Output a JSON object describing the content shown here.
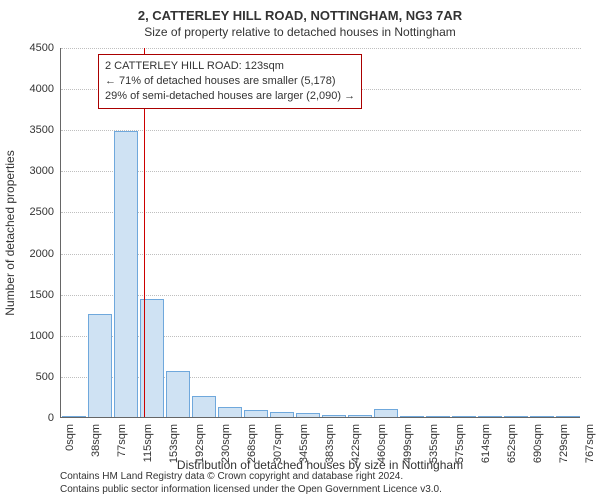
{
  "header": {
    "title": "2, CATTERLEY HILL ROAD, NOTTINGHAM, NG3 7AR",
    "subtitle": "Size of property relative to detached houses in Nottingham"
  },
  "chart": {
    "type": "histogram",
    "ylabel": "Number of detached properties",
    "xlabel": "Distribution of detached houses by size in Nottingham",
    "ylim_max": 4500,
    "ytick_step": 500,
    "yticks": [
      0,
      500,
      1000,
      1500,
      2000,
      2500,
      3000,
      3500,
      4000,
      4500
    ],
    "xticks": [
      "0sqm",
      "38sqm",
      "77sqm",
      "115sqm",
      "153sqm",
      "192sqm",
      "230sqm",
      "268sqm",
      "307sqm",
      "345sqm",
      "383sqm",
      "422sqm",
      "460sqm",
      "499sqm",
      "535sqm",
      "575sqm",
      "614sqm",
      "652sqm",
      "690sqm",
      "729sqm",
      "767sqm"
    ],
    "values": [
      0,
      1250,
      3480,
      1440,
      560,
      260,
      120,
      80,
      60,
      45,
      30,
      20,
      100,
      0,
      0,
      0,
      0,
      0,
      0,
      0
    ],
    "bar_fill": "#cfe2f3",
    "bar_stroke": "#6fa8dc",
    "grid_color": "#bfbfbf",
    "axis_color": "#666666",
    "background_color": "#ffffff",
    "marker": {
      "position_sqm": 123,
      "max_sqm": 767,
      "color": "#cc0000"
    },
    "annotation": {
      "line1": "2 CATTERLEY HILL ROAD: 123sqm",
      "line2": "← 71% of detached houses are smaller (5,178)",
      "line3": "29% of semi-detached houses are larger (2,090) →",
      "border_color": "#aa0000",
      "fontsize": 11
    }
  },
  "attribution": {
    "line1": "Contains HM Land Registry data © Crown copyright and database right 2024.",
    "line2": "Contains public sector information licensed under the Open Government Licence v3.0."
  },
  "colors": {
    "text": "#333333",
    "attribution_text": "#555555"
  }
}
